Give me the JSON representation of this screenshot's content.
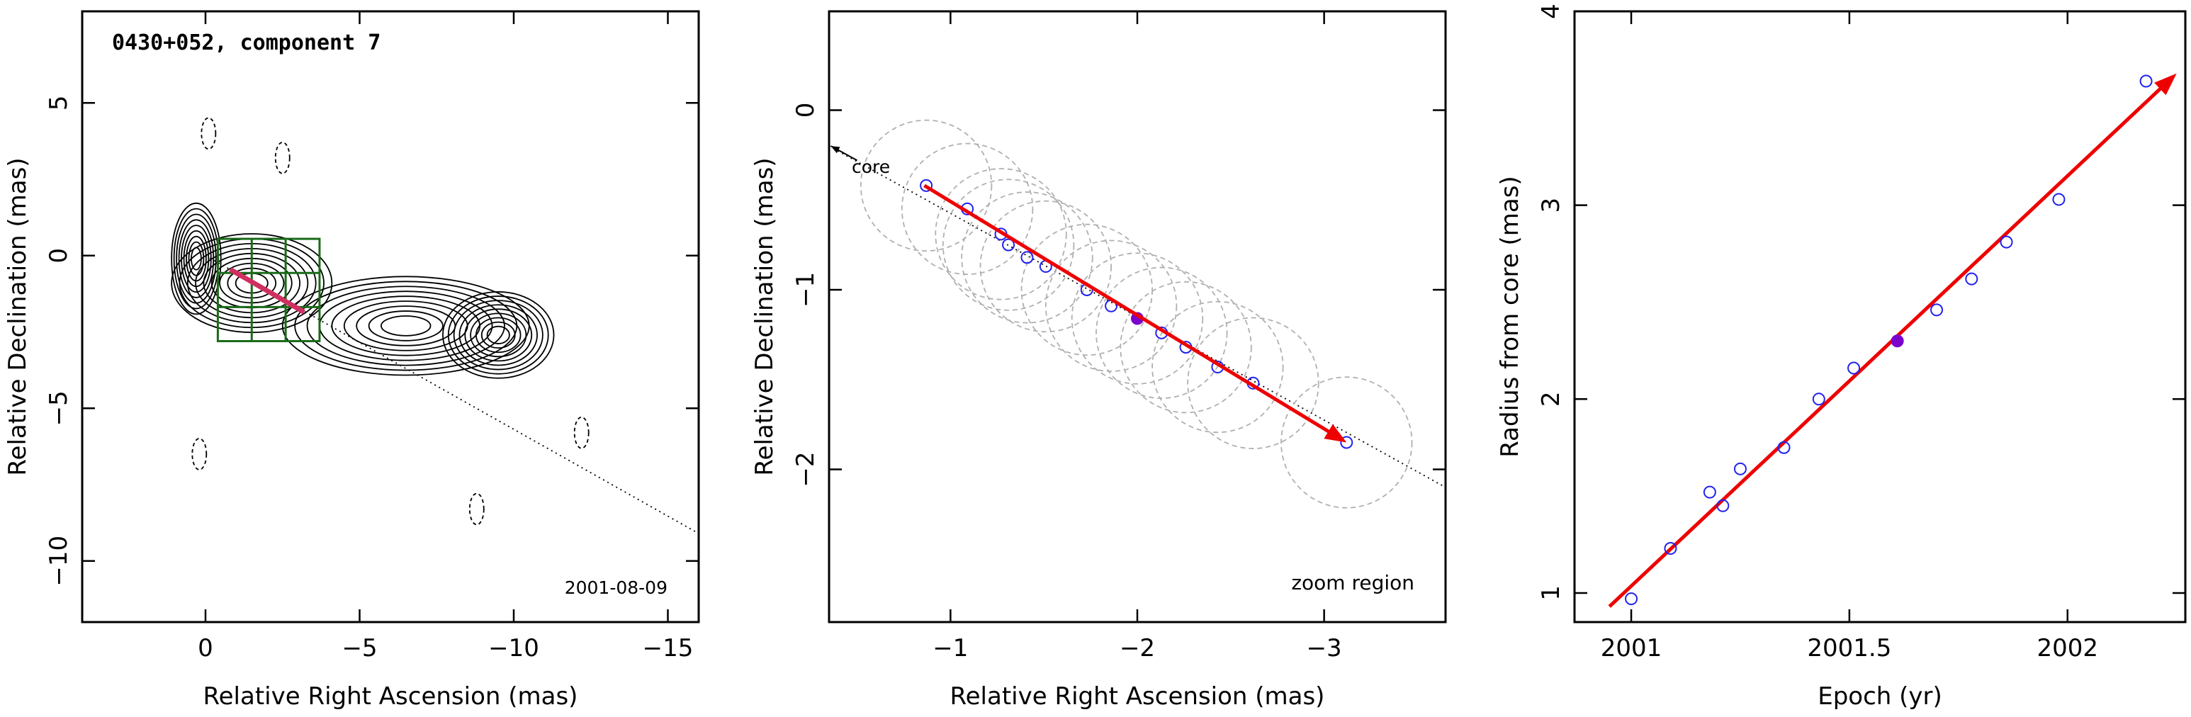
{
  "colors": {
    "frame": "#000000",
    "contour": "#000000",
    "arrow": "#ee0000",
    "box": "#1a6b1a",
    "point_open": "#2222ee",
    "point_filled": "#7a00cc",
    "circle_dashed": "#b0b0b0",
    "marker_line": "#d03060"
  },
  "chart_data": [
    {
      "type": "scatter",
      "panel": "contour-map",
      "title": "0430+052, component 7",
      "annotation": "2001-08-09",
      "xlabel": "Relative Right Ascension (mas)",
      "ylabel": "Relative Declination (mas)",
      "xlim": [
        4,
        -16
      ],
      "ylim": [
        -12,
        8
      ],
      "xticks": [
        "0",
        "−5",
        "−10",
        "−15"
      ],
      "xtick_values": [
        0,
        -5,
        -10,
        -15
      ],
      "yticks": [
        "−10",
        "−5",
        "0",
        "5"
      ],
      "ytick_values": [
        -10,
        -5,
        0,
        5
      ],
      "trajectory_line": {
        "from": [
          0,
          0
        ],
        "to": [
          -16,
          -9.1
        ],
        "style": "dotted"
      },
      "motion_arrow": {
        "from": [
          -0.8,
          -0.45
        ],
        "to": [
          -3.2,
          -1.85
        ]
      },
      "zoom_box": {
        "x": [
          -0.4,
          -3.7
        ],
        "y": [
          0.55,
          -2.8
        ],
        "grid": 3
      },
      "contours": [
        {
          "cx": 0.3,
          "cy": -0.1,
          "rx": 0.8,
          "ry": 1.8,
          "level": 1
        },
        {
          "cx": -1.5,
          "cy": -0.9,
          "rx": 2.6,
          "ry": 1.6,
          "level": 1
        },
        {
          "cx": -6.5,
          "cy": -2.3,
          "rx": 4.0,
          "ry": 1.6,
          "level": 1
        },
        {
          "cx": -9.5,
          "cy": -2.6,
          "rx": 1.8,
          "ry": 1.4,
          "level": 1
        }
      ],
      "negative_contours": [
        {
          "x": -0.1,
          "y": 4.0
        },
        {
          "x": -2.5,
          "y": 3.2
        },
        {
          "x": 0.2,
          "y": -6.5
        },
        {
          "x": -8.8,
          "y": -8.3
        },
        {
          "x": -12.2,
          "y": -5.8
        }
      ]
    },
    {
      "type": "scatter",
      "panel": "zoom-region",
      "annotation": "zoom region",
      "core_label": "core",
      "xlabel": "Relative Right Ascension (mas)",
      "ylabel": "Relative Declination (mas)",
      "xlim": [
        -0.35,
        -3.65
      ],
      "ylim": [
        -2.85,
        0.55
      ],
      "xticks": [
        "−1",
        "−2",
        "−3"
      ],
      "xtick_values": [
        -1,
        -2,
        -3
      ],
      "yticks": [
        "−2",
        "−1",
        "0"
      ],
      "ytick_values": [
        -2,
        -1,
        0
      ],
      "circle_radius": 0.35,
      "points": [
        {
          "x": -0.87,
          "y": -0.42
        },
        {
          "x": -1.09,
          "y": -0.55
        },
        {
          "x": -1.27,
          "y": -0.69
        },
        {
          "x": -1.31,
          "y": -0.75
        },
        {
          "x": -1.41,
          "y": -0.82
        },
        {
          "x": -1.51,
          "y": -0.87
        },
        {
          "x": -1.73,
          "y": -1.0
        },
        {
          "x": -1.86,
          "y": -1.09
        },
        {
          "x": -2.0,
          "y": -1.16,
          "filled": true
        },
        {
          "x": -2.13,
          "y": -1.24
        },
        {
          "x": -2.26,
          "y": -1.32
        },
        {
          "x": -2.43,
          "y": -1.43
        },
        {
          "x": -2.62,
          "y": -1.52
        },
        {
          "x": -3.12,
          "y": -1.85
        }
      ],
      "trajectory_line": {
        "from": [
          -0.35,
          -0.2
        ],
        "to": [
          -3.65,
          -2.1
        ],
        "style": "dotted"
      },
      "motion_arrow": {
        "from": [
          -0.86,
          -0.42
        ],
        "to": [
          -3.12,
          -1.85
        ]
      }
    },
    {
      "type": "scatter",
      "panel": "radius-vs-epoch",
      "xlabel": "Epoch (yr)",
      "ylabel": "Radius from core (mas)",
      "xlim": [
        2000.87,
        2002.27
      ],
      "ylim": [
        0.85,
        4.0
      ],
      "xticks": [
        "2001",
        "2001.5",
        "2002"
      ],
      "xtick_values": [
        2001,
        2001.5,
        2002
      ],
      "yticks": [
        "1",
        "2",
        "3",
        "4"
      ],
      "ytick_values": [
        1,
        2,
        3,
        4
      ],
      "points": [
        {
          "x": 2001.0,
          "y": 0.97
        },
        {
          "x": 2001.09,
          "y": 1.23
        },
        {
          "x": 2001.18,
          "y": 1.52
        },
        {
          "x": 2001.21,
          "y": 1.45
        },
        {
          "x": 2001.25,
          "y": 1.64
        },
        {
          "x": 2001.35,
          "y": 1.75
        },
        {
          "x": 2001.43,
          "y": 2.0
        },
        {
          "x": 2001.51,
          "y": 2.16
        },
        {
          "x": 2001.61,
          "y": 2.3,
          "filled": true
        },
        {
          "x": 2001.7,
          "y": 2.46
        },
        {
          "x": 2001.78,
          "y": 2.62
        },
        {
          "x": 2001.86,
          "y": 2.81
        },
        {
          "x": 2001.98,
          "y": 3.03
        },
        {
          "x": 2002.18,
          "y": 3.64
        }
      ],
      "fit_line": {
        "from": [
          2000.95,
          0.93
        ],
        "to": [
          2002.25,
          3.68
        ]
      }
    }
  ]
}
